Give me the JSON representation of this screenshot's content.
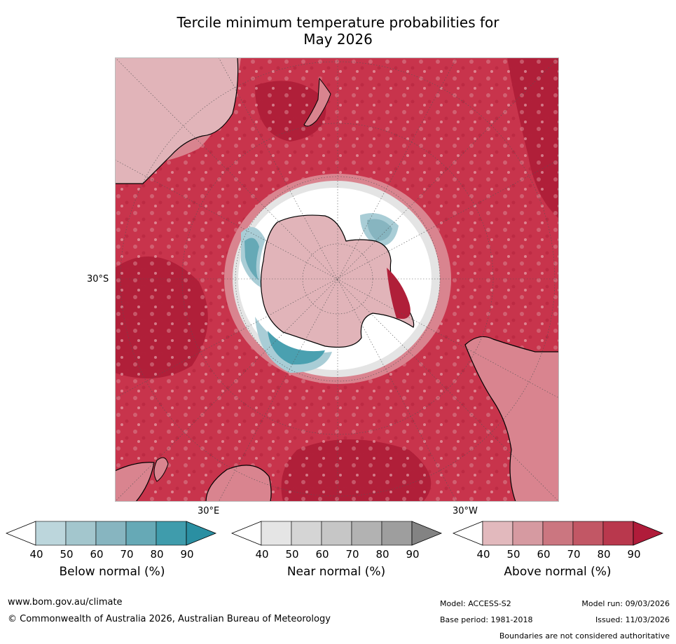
{
  "title_line1": "Tercile minimum temperature probabilities for",
  "title_line2": "May 2026",
  "map": {
    "projection": "south polar stereographic",
    "labels": {
      "lat_label": "30°S",
      "lon_east_label": "30°E",
      "lon_west_label": "30°W"
    },
    "colors": {
      "ocean_above": "#c8344c",
      "ocean_above_dark": "#b01f39",
      "ocean_above_light": "#d9848f",
      "ring_near": "#e4e4e4",
      "ring_white": "#ffffff",
      "below_blue": "#4aa0b0",
      "below_light": "#a9cdd6",
      "antarctic_pink": "#e1b4b9",
      "coast": "#000000",
      "grid": "#555555"
    }
  },
  "legends": [
    {
      "title": "Below normal (%)",
      "ticks": [
        "40",
        "50",
        "60",
        "70",
        "80",
        "90"
      ],
      "colors": [
        "#ffffff",
        "#bcd6dc",
        "#a3c6cd",
        "#87b5c0",
        "#66a9b6",
        "#3f9cac",
        "#2a8fa2"
      ]
    },
    {
      "title": "Near normal (%)",
      "ticks": [
        "40",
        "50",
        "60",
        "70",
        "80",
        "90"
      ],
      "colors": [
        "#ffffff",
        "#e5e5e5",
        "#d5d5d5",
        "#c6c6c6",
        "#b2b2b2",
        "#9e9e9e",
        "#838383"
      ]
    },
    {
      "title": "Above normal (%)",
      "ticks": [
        "40",
        "50",
        "60",
        "70",
        "80",
        "90"
      ],
      "colors": [
        "#ffffff",
        "#e2b9bd",
        "#d69aa1",
        "#cb7680",
        "#c25765",
        "#b9384d",
        "#b01c3a"
      ]
    }
  ],
  "footer": {
    "website": "www.bom.gov.au/climate",
    "copyright": "© Commonwealth of Australia 2026, Australian Bureau of Meteorology",
    "model": "Model: ACCESS-S2",
    "base_period": "Base period: 1981-2018",
    "model_run": "Model run: 09/03/2026",
    "issued": "Issued: 11/03/2026",
    "disclaimer": "Boundaries are not considered authoritative"
  }
}
